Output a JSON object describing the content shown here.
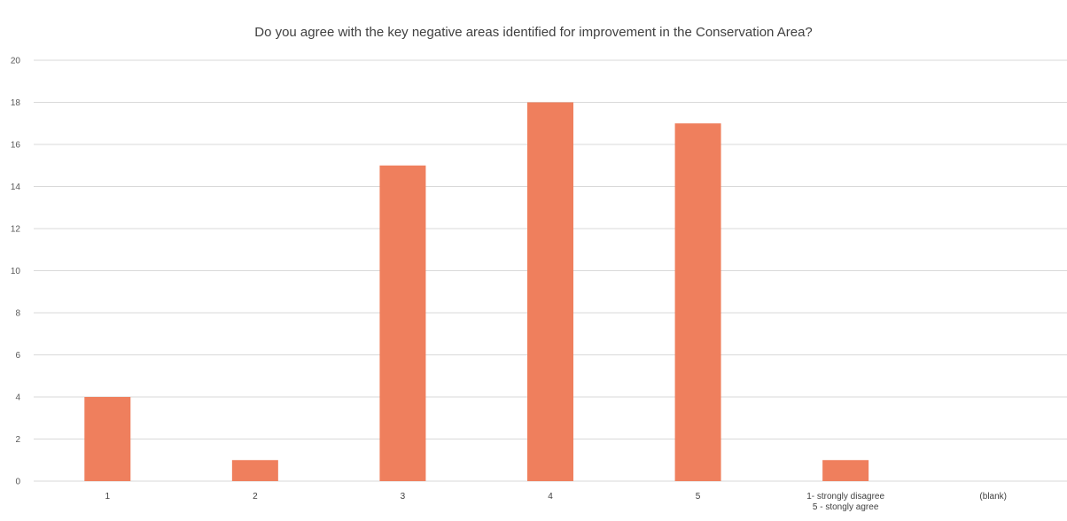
{
  "chart_data": {
    "type": "bar",
    "title": "Do you agree with the key negative areas identified for improvement in the Conservation Area?",
    "categories": [
      "1",
      "2",
      "3",
      "4",
      "5",
      "1- strongly disagree\n5 - stongly agree",
      "(blank)"
    ],
    "values": [
      4,
      1,
      15,
      18,
      17,
      1,
      0
    ],
    "ylim": [
      0,
      20
    ],
    "yticks": [
      0,
      2,
      4,
      6,
      8,
      10,
      12,
      14,
      16,
      18,
      20
    ],
    "grid": true,
    "legend": "none",
    "bar_color": "#EF7F5D",
    "grid_color": "#D9D9D9"
  }
}
